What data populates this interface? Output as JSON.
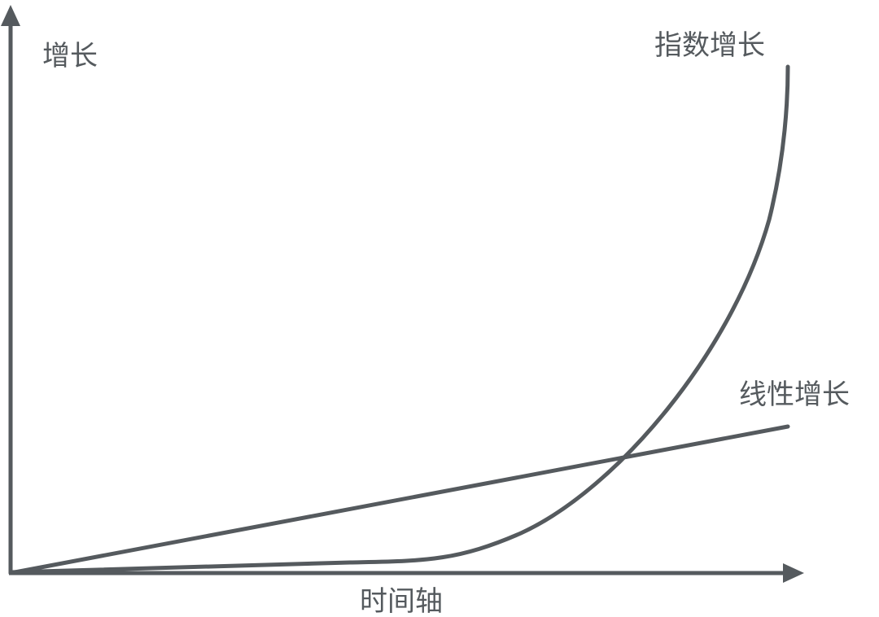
{
  "y_axis_label": "增长",
  "x_axis_label": "时间轴",
  "curves": {
    "exponential_label": "指数增长",
    "linear_label": "线性增长"
  },
  "colors": {
    "stroke": "#555a5e",
    "background": "#ffffff"
  }
}
